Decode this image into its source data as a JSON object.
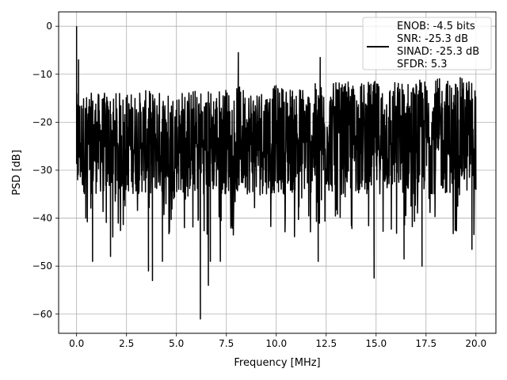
{
  "chart_data": {
    "type": "line",
    "title": "",
    "xlabel": "Frequency [MHz]",
    "ylabel": "PSD [dB]",
    "xlim": [
      -0.9,
      21.0
    ],
    "ylim": [
      -64,
      3
    ],
    "grid": true,
    "x_ticks": [
      0.0,
      2.5,
      5.0,
      7.5,
      10.0,
      12.5,
      15.0,
      17.5,
      20.0
    ],
    "x_tick_labels": [
      "0.0",
      "2.5",
      "5.0",
      "7.5",
      "10.0",
      "12.5",
      "15.0",
      "17.5",
      "20.0"
    ],
    "y_ticks": [
      0,
      -10,
      -20,
      -30,
      -40,
      -50,
      -60
    ],
    "y_tick_labels": [
      "0",
      "−10",
      "−20",
      "−30",
      "−40",
      "−50",
      "−60"
    ],
    "legend_position": "top-right",
    "legend_lines": [
      "ENOB: -4.5 bits",
      "SNR: -25.3 dB",
      "SINAD: -25.3 dB",
      "SFDR: 5.3"
    ],
    "series": [
      {
        "color": "#000000",
        "x_range": [
          0.0,
          20.0
        ],
        "features": [
          {
            "x": 0.0,
            "y": 0.0
          },
          {
            "x": 0.05,
            "y": -32.0
          },
          {
            "x": 0.1,
            "y": -7.0
          },
          {
            "x": 0.8,
            "y": -49.0
          },
          {
            "x": 1.7,
            "y": -48.0
          },
          {
            "x": 3.6,
            "y": -51.0
          },
          {
            "x": 3.8,
            "y": -53.0
          },
          {
            "x": 4.3,
            "y": -49.0
          },
          {
            "x": 6.2,
            "y": -61.0
          },
          {
            "x": 6.6,
            "y": -54.0
          },
          {
            "x": 6.7,
            "y": -49.0
          },
          {
            "x": 7.2,
            "y": -49.0
          },
          {
            "x": 8.1,
            "y": -5.5
          },
          {
            "x": 12.1,
            "y": -49.0
          },
          {
            "x": 12.2,
            "y": -6.5
          },
          {
            "x": 14.9,
            "y": -52.5
          },
          {
            "x": 16.4,
            "y": -48.5
          },
          {
            "x": 17.3,
            "y": -50.0
          },
          {
            "x": 19.8,
            "y": -46.5
          }
        ],
        "band_upper_left": -14.0,
        "band_upper_right": -10.5,
        "band_lower": -35.0,
        "spike_floor": -44.0
      }
    ]
  }
}
